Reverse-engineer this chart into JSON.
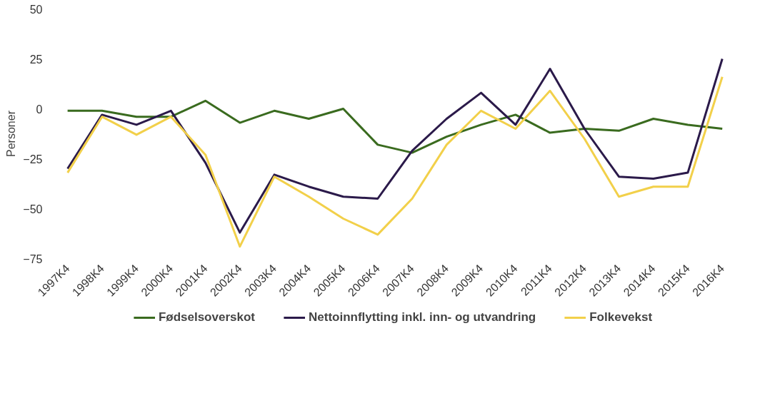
{
  "chart_data": {
    "type": "line",
    "ylabel": "Personer",
    "categories": [
      "1997K4",
      "1998K4",
      "1999K4",
      "2000K4",
      "2001K4",
      "2002K4",
      "2003K4",
      "2004K4",
      "2005K4",
      "2006K4",
      "2007K4",
      "2008K4",
      "2009K4",
      "2010K4",
      "2011K4",
      "2012K4",
      "2013K4",
      "2014K4",
      "2015K4",
      "2016K4"
    ],
    "series": [
      {
        "name": "Fødselsoverskot",
        "color": "#3a6b1f",
        "values": [
          -1,
          -1,
          -4,
          -4,
          4,
          -7,
          -1,
          -5,
          0,
          -18,
          -22,
          -14,
          -8,
          -3,
          -12,
          -10,
          -11,
          -5,
          -8,
          -10
        ]
      },
      {
        "name": "Nettoinnflytting inkl. inn- og utvandring",
        "color": "#2b1a4a",
        "values": [
          -30,
          -3,
          -8,
          -1,
          -27,
          -62,
          -33,
          -39,
          -44,
          -45,
          -21,
          -5,
          8,
          -8,
          20,
          -10,
          -34,
          -35,
          -32,
          25
        ]
      },
      {
        "name": "Folkevekst",
        "color": "#f2d04a",
        "values": [
          -32,
          -4,
          -13,
          -4,
          -23,
          -69,
          -34,
          -44,
          -55,
          -63,
          -45,
          -18,
          -1,
          -10,
          9,
          -15,
          -44,
          -39,
          -39,
          16
        ]
      }
    ],
    "ylim": [
      -75,
      50
    ],
    "yticks": [
      -75,
      -50,
      -25,
      0,
      25,
      50
    ],
    "grid": false,
    "legend": "bottom",
    "marker": "none",
    "line_style": "solid"
  }
}
